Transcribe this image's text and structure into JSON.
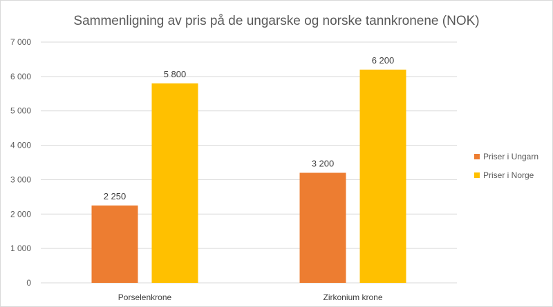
{
  "chart_data": {
    "type": "bar",
    "title": "Sammenligning av pris på de ungarske og norske tannkronene (NOK)",
    "xlabel": "",
    "ylabel": "",
    "categories": [
      "Porselenkrone",
      "Zirkonium krone"
    ],
    "series": [
      {
        "name": "Priser i Ungarn",
        "values": [
          2250,
          3200
        ],
        "color": "#ED7D31"
      },
      {
        "name": "Priser i Norge",
        "values": [
          5800,
          6200
        ],
        "color": "#FFC000"
      }
    ],
    "ylim": [
      0,
      7000
    ],
    "yticks": [
      0,
      1000,
      2000,
      3000,
      4000,
      5000,
      6000,
      7000
    ],
    "ytick_labels": [
      "0",
      "1 000",
      "2 000",
      "3 000",
      "4 000",
      "5 000",
      "6 000",
      "7 000"
    ],
    "data_labels": [
      [
        "2 250",
        "3 200"
      ],
      [
        "5 800",
        "6 200"
      ]
    ],
    "grid": true,
    "legend": "right"
  }
}
